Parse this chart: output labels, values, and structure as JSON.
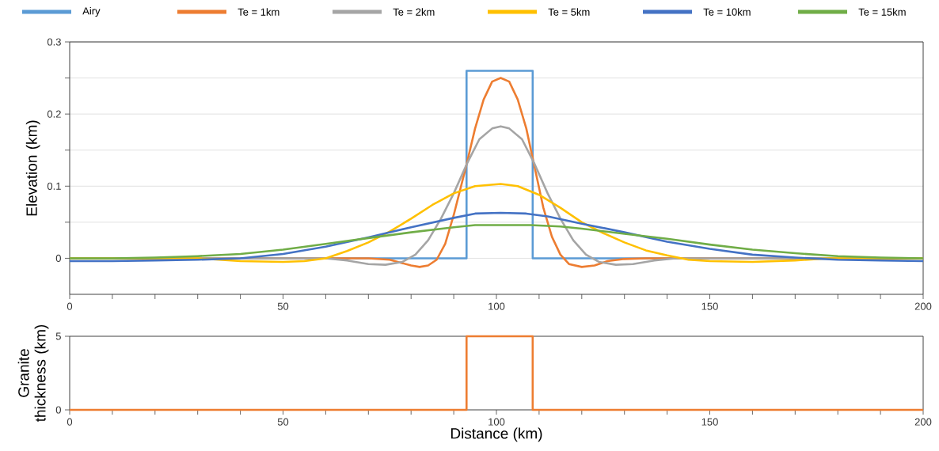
{
  "chart_data": [
    {
      "type": "line",
      "ylabel": "Elevation (km)",
      "xlim": [
        0,
        200
      ],
      "ylim": [
        -0.05,
        0.3
      ],
      "xticks": [
        0,
        {
          "value": 10,
          "label": null
        },
        {
          "value": 20,
          "label": null
        },
        {
          "value": 30,
          "label": null
        },
        {
          "value": 40,
          "label": null
        },
        50,
        {
          "value": 60,
          "label": null
        },
        {
          "value": 70,
          "label": null
        },
        {
          "value": 80,
          "label": null
        },
        {
          "value": 90,
          "label": null
        },
        100,
        {
          "value": 110,
          "label": null
        },
        {
          "value": 120,
          "label": null
        },
        {
          "value": 130,
          "label": null
        },
        {
          "value": 140,
          "label": null
        },
        150,
        {
          "value": 160,
          "label": null
        },
        {
          "value": 170,
          "label": null
        },
        {
          "value": 180,
          "label": null
        },
        {
          "value": 190,
          "label": null
        },
        200
      ],
      "yticks": [
        0,
        {
          "value": 0.05,
          "label": null
        },
        0.1,
        {
          "value": 0.15,
          "label": null
        },
        0.2,
        {
          "value": 0.25,
          "label": null
        },
        0.3
      ],
      "grid": "y",
      "legend": "top",
      "marker": "none",
      "line_style": "solid",
      "series": [
        {
          "name": "Airy",
          "color": "#5b9bd5",
          "x": [
            0,
            93,
            93,
            108.5,
            108.5,
            200
          ],
          "values": [
            0,
            0,
            0.26,
            0.26,
            0,
            0
          ]
        },
        {
          "name": "Te = 1km",
          "color": "#ed7d31",
          "x": [
            0,
            70,
            75,
            80,
            82,
            84,
            86,
            88,
            90,
            93,
            95,
            97,
            99,
            101,
            103,
            105,
            107,
            109,
            111,
            113,
            115,
            117,
            120,
            123,
            126,
            130,
            135,
            200
          ],
          "values": [
            0,
            0,
            -0.002,
            -0.01,
            -0.012,
            -0.01,
            -0.002,
            0.02,
            0.06,
            0.13,
            0.18,
            0.22,
            0.245,
            0.25,
            0.245,
            0.22,
            0.18,
            0.125,
            0.07,
            0.03,
            0.005,
            -0.008,
            -0.012,
            -0.01,
            -0.004,
            -0.001,
            0,
            0
          ]
        },
        {
          "name": "Te = 2km",
          "color": "#a5a5a5",
          "x": [
            0,
            60,
            65,
            70,
            74,
            78,
            81,
            84,
            87,
            90,
            93,
            96,
            99,
            101,
            103,
            106,
            109,
            112,
            115,
            118,
            121,
            124,
            128,
            132,
            137,
            142,
            200
          ],
          "values": [
            0,
            0,
            -0.003,
            -0.008,
            -0.009,
            -0.005,
            0.005,
            0.025,
            0.055,
            0.09,
            0.13,
            0.165,
            0.18,
            0.183,
            0.18,
            0.165,
            0.13,
            0.09,
            0.055,
            0.025,
            0.005,
            -0.005,
            -0.009,
            -0.008,
            -0.003,
            0,
            0
          ]
        },
        {
          "name": "Te = 5km",
          "color": "#ffc000",
          "x": [
            0,
            30,
            40,
            50,
            55,
            60,
            65,
            70,
            75,
            80,
            85,
            90,
            95,
            101,
            105,
            110,
            115,
            120,
            125,
            130,
            135,
            140,
            145,
            150,
            160,
            170,
            178,
            200
          ],
          "values": [
            0,
            0,
            -0.004,
            -0.005,
            -0.004,
            0,
            0.01,
            0.022,
            0.037,
            0.055,
            0.074,
            0.09,
            0.1,
            0.103,
            0.1,
            0.088,
            0.07,
            0.05,
            0.035,
            0.022,
            0.011,
            0.004,
            -0.002,
            -0.004,
            -0.005,
            -0.003,
            0,
            0
          ]
        },
        {
          "name": "Te = 10km",
          "color": "#4472c4",
          "x": [
            0,
            10,
            20,
            30,
            40,
            50,
            60,
            70,
            80,
            90,
            95,
            101,
            107,
            112,
            120,
            130,
            140,
            150,
            160,
            170,
            180,
            190,
            200
          ],
          "values": [
            -0.004,
            -0.004,
            -0.003,
            -0.002,
            0,
            0.006,
            0.016,
            0.029,
            0.043,
            0.056,
            0.062,
            0.063,
            0.062,
            0.058,
            0.048,
            0.036,
            0.023,
            0.013,
            0.005,
            0.001,
            -0.002,
            -0.003,
            -0.004
          ]
        },
        {
          "name": "Te = 15km",
          "color": "#70ad47",
          "x": [
            0,
            10,
            20,
            30,
            40,
            50,
            60,
            70,
            80,
            90,
            95,
            108,
            115,
            120,
            130,
            140,
            150,
            160,
            170,
            180,
            190,
            200
          ],
          "values": [
            0,
            0,
            0.001,
            0.003,
            0.006,
            0.012,
            0.02,
            0.028,
            0.036,
            0.043,
            0.046,
            0.046,
            0.044,
            0.041,
            0.034,
            0.027,
            0.019,
            0.012,
            0.007,
            0.003,
            0.001,
            0
          ]
        }
      ]
    },
    {
      "type": "line",
      "xlabel": "Distance (km)",
      "ylabel": "Granite thickness (km)",
      "xlim": [
        0,
        200
      ],
      "ylim": [
        0,
        5
      ],
      "xticks": [
        0,
        {
          "value": 10,
          "label": null
        },
        {
          "value": 20,
          "label": null
        },
        {
          "value": 30,
          "label": null
        },
        {
          "value": 40,
          "label": null
        },
        50,
        {
          "value": 60,
          "label": null
        },
        {
          "value": 70,
          "label": null
        },
        {
          "value": 80,
          "label": null
        },
        {
          "value": 90,
          "label": null
        },
        100,
        {
          "value": 110,
          "label": null
        },
        {
          "value": 120,
          "label": null
        },
        {
          "value": 130,
          "label": null
        },
        {
          "value": 140,
          "label": null
        },
        150,
        {
          "value": 160,
          "label": null
        },
        {
          "value": 170,
          "label": null
        },
        {
          "value": 180,
          "label": null
        },
        {
          "value": 190,
          "label": null
        },
        200
      ],
      "yticks": [
        0,
        5
      ],
      "marker": "none",
      "line_style": "solid",
      "series": [
        {
          "color": "#ed7d31",
          "x": [
            0,
            93,
            93,
            108.5,
            108.5,
            200
          ],
          "values": [
            0,
            0,
            5,
            5,
            0,
            0
          ]
        }
      ]
    }
  ]
}
